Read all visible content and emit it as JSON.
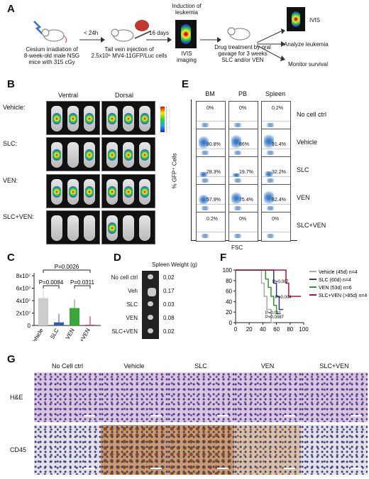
{
  "panels": {
    "a": "A",
    "b": "B",
    "c": "C",
    "d": "D",
    "e": "E",
    "f": "F",
    "g": "G"
  },
  "panel_a": {
    "step1": [
      "Cesium irradiation of",
      "8-week-old male NSG",
      "mice with 315 cGy"
    ],
    "arrow1": "< 24h",
    "step2": [
      "Tail vein injection of",
      "2.5x10⁶ MV4-11GFP/Luc cells"
    ],
    "arrow2": "16 days",
    "step3_top": [
      "Induction of",
      "leukemia"
    ],
    "step3_bottom": [
      "IVIS",
      "imaging"
    ],
    "step4": [
      "Drug treatment by oral",
      "gavage for 3 weeks",
      "SLC and/or VEN"
    ],
    "out1": "IVIS",
    "out2": "Analyze leukemia",
    "out3": "Monitor survival"
  },
  "panel_b": {
    "ventral": "Ventral",
    "dorsal": "Dorsal",
    "rows": [
      "Vehicle:",
      "SLC:",
      "VEN:",
      "SLC+VEN:"
    ]
  },
  "panel_c": {
    "ylabels": [
      "8x10⁷",
      "6x10⁷",
      "4x10⁷",
      "2x10⁷",
      "0"
    ],
    "categories": [
      "Vehicle",
      "SLC",
      "VEN",
      "SLC+VEN"
    ],
    "pvals": [
      "P=0.0026",
      "P=0.0084",
      "P=0.0311"
    ]
  },
  "panel_d": {
    "title": "Spleen Weight (g)",
    "rows": [
      {
        "label": "No cell ctrl",
        "value": "0.02"
      },
      {
        "label": "Veh",
        "value": "0.17"
      },
      {
        "label": "SLC",
        "value": "0.03"
      },
      {
        "label": "VEN",
        "value": "0.08"
      },
      {
        "label": "SLC+VEN",
        "value": "0.02"
      }
    ]
  },
  "panel_e": {
    "cols": [
      "BM",
      "PB",
      "Spleen"
    ],
    "rows": [
      "No cell ctrl",
      "Vehicle",
      "SLC",
      "VEN",
      "SLC+VEN"
    ],
    "values": [
      [
        "0%",
        "0%",
        "0.2%"
      ],
      [
        "80.8%",
        "86%",
        "91.4%"
      ],
      [
        "28.3%",
        "19.7%",
        "32.2%"
      ],
      [
        "57.9%",
        "75.4%",
        "82.4%"
      ],
      [
        "0.2%",
        "0%",
        "0%"
      ]
    ],
    "ylabel": "% GFP⁺ Cells",
    "xlabel": "FSC"
  },
  "panel_f": {
    "yticks": [
      "100",
      "80",
      "60",
      "40",
      "20",
      "0"
    ],
    "xticks": [
      "0",
      "20",
      "40",
      "60",
      "80",
      "100"
    ],
    "legend": [
      {
        "label": "Vehicle (45d) n=4",
        "color": "#aaaaaa"
      },
      {
        "label": "SLC (60d) n=4",
        "color": "#2b3a8f"
      },
      {
        "label": "VEN (53d) n=6",
        "color": "#2e9a2e"
      },
      {
        "label": "SLC+VEN (>85d) n=4",
        "color": "#b0143c"
      }
    ],
    "pvals": [
      "P=0.007",
      "P=0.004",
      "P=0.011",
      "P=0.0087"
    ]
  },
  "panel_g": {
    "cols": [
      "No Cell ctrl",
      "Vehicle",
      "SLC",
      "VEN",
      "SLC+VEN"
    ],
    "rows": [
      "H&E",
      "CD45"
    ]
  },
  "chart_data": [
    {
      "type": "bar",
      "title": "",
      "categories": [
        "Vehicle",
        "SLC",
        "VEN",
        "SLC+VEN"
      ],
      "values": [
        44000000,
        5000000,
        28000000,
        1000000
      ],
      "ylim": [
        0,
        80000000
      ],
      "colors": [
        "#cccccc",
        "#3a57b5",
        "#3aa63a",
        "#c0143c"
      ]
    },
    {
      "type": "line",
      "title": "",
      "xlim": [
        0,
        100
      ],
      "ylim": [
        0,
        100
      ],
      "series": [
        {
          "name": "Vehicle (45d) n=4",
          "x": [
            0,
            38,
            38,
            42,
            42,
            46,
            46,
            52,
            52,
            56
          ],
          "y": [
            100,
            100,
            75,
            75,
            50,
            50,
            25,
            25,
            0,
            0
          ]
        },
        {
          "name": "SLC (60d) n=4",
          "x": [
            0,
            56,
            56,
            60,
            60,
            64,
            64,
            70
          ],
          "y": [
            100,
            100,
            75,
            75,
            50,
            50,
            25,
            25
          ]
        },
        {
          "name": "VEN (53d) n=6",
          "x": [
            0,
            44,
            44,
            48,
            48,
            52,
            52,
            56,
            56,
            60,
            60,
            64
          ],
          "y": [
            100,
            100,
            83,
            83,
            67,
            67,
            50,
            50,
            33,
            33,
            17,
            17
          ]
        },
        {
          "name": "SLC+VEN (>85d) n=4",
          "x": [
            0,
            74,
            74,
            78,
            78,
            96
          ],
          "y": [
            100,
            100,
            75,
            75,
            50,
            50
          ]
        }
      ]
    }
  ]
}
